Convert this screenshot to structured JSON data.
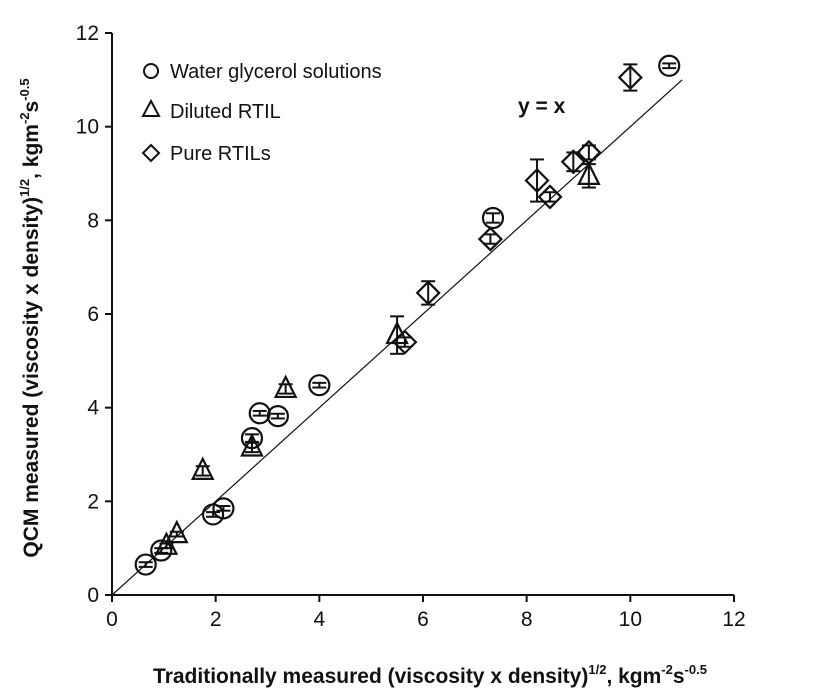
{
  "chart_data": {
    "type": "scatter",
    "xlabel": "Traditionally measured (viscosity x density)",
    "xlabel_sup": "1/2",
    "xlabel_units": ", kgm",
    "xlabel_units_sup1": "-2",
    "xlabel_units_mid": "s",
    "xlabel_units_sup2": "-0.5",
    "ylabel": "QCM measured (viscosity x density)",
    "ylabel_sup": "1/2",
    "ylabel_units": ", kgm",
    "ylabel_units_sup1": "-2",
    "ylabel_units_mid": "s",
    "ylabel_units_sup2": "-0.5",
    "xlim": [
      0,
      12
    ],
    "ylim": [
      0,
      12
    ],
    "xticks": [
      0,
      2,
      4,
      6,
      8,
      10,
      12
    ],
    "yticks": [
      0,
      2,
      4,
      6,
      8,
      10,
      12
    ],
    "grid": false,
    "legend_position": "top-left",
    "annotation": "y = x",
    "reference_line": {
      "from": [
        0,
        0
      ],
      "to": [
        11,
        11
      ]
    },
    "series": [
      {
        "name": "Water glycerol solutions",
        "marker": "circle",
        "points": [
          {
            "x": 0.65,
            "y": 0.65,
            "err": 0.05
          },
          {
            "x": 0.95,
            "y": 0.95,
            "err": 0.05
          },
          {
            "x": 1.95,
            "y": 1.72,
            "err": 0.05
          },
          {
            "x": 2.15,
            "y": 1.85,
            "err": 0.05
          },
          {
            "x": 2.7,
            "y": 3.35,
            "err": 0.08
          },
          {
            "x": 2.85,
            "y": 3.88,
            "err": 0.05
          },
          {
            "x": 3.2,
            "y": 3.82,
            "err": 0.05
          },
          {
            "x": 4.0,
            "y": 4.48,
            "err": 0.05
          },
          {
            "x": 7.35,
            "y": 8.05,
            "err": 0.1
          },
          {
            "x": 10.75,
            "y": 11.3,
            "err": 0.05
          }
        ]
      },
      {
        "name": "Diluted RTIL",
        "marker": "triangle",
        "points": [
          {
            "x": 1.05,
            "y": 1.05,
            "err": 0.05
          },
          {
            "x": 1.25,
            "y": 1.3,
            "err": 0.05
          },
          {
            "x": 1.75,
            "y": 2.65,
            "err": 0.1
          },
          {
            "x": 2.7,
            "y": 3.15,
            "err": 0.1
          },
          {
            "x": 3.35,
            "y": 4.4,
            "err": 0.1
          },
          {
            "x": 5.5,
            "y": 5.55,
            "err": 0.4
          },
          {
            "x": 9.2,
            "y": 8.95,
            "err": 0.25
          }
        ]
      },
      {
        "name": "Pure RTILs",
        "marker": "diamond",
        "points": [
          {
            "x": 5.65,
            "y": 5.4,
            "err": 0.1
          },
          {
            "x": 6.1,
            "y": 6.45,
            "err": 0.25
          },
          {
            "x": 7.3,
            "y": 7.6,
            "err": 0.1
          },
          {
            "x": 8.2,
            "y": 8.85,
            "err": 0.45
          },
          {
            "x": 8.45,
            "y": 8.5,
            "err": 0.1
          },
          {
            "x": 8.9,
            "y": 9.25,
            "err": 0.2
          },
          {
            "x": 9.2,
            "y": 9.45,
            "err": 0.15
          },
          {
            "x": 10.0,
            "y": 11.05,
            "err": 0.28
          }
        ]
      }
    ]
  }
}
